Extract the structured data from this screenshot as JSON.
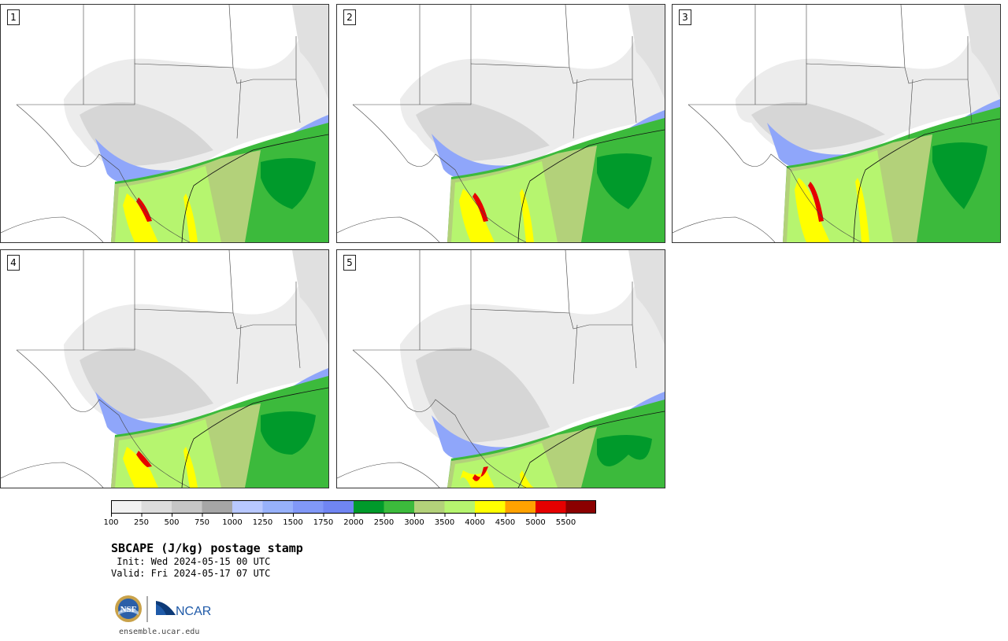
{
  "panels": [
    {
      "label": "1"
    },
    {
      "label": "2"
    },
    {
      "label": "3"
    },
    {
      "label": "4"
    },
    {
      "label": "5"
    }
  ],
  "colorbar": {
    "ticks": [
      "100",
      "250",
      "500",
      "750",
      "1000",
      "1250",
      "1500",
      "1750",
      "2000",
      "2500",
      "3000",
      "3500",
      "4000",
      "4500",
      "5000",
      "5500"
    ],
    "colors": [
      "#f2f2f2",
      "#dcdcdc",
      "#c6c6c6",
      "#a6a6a6",
      "#b8c8ff",
      "#97b1fb",
      "#8198f7",
      "#7085f2",
      "#009a2b",
      "#3cba3c",
      "#b3d17a",
      "#b6f56f",
      "#ffff00",
      "#ffa200",
      "#e50000",
      "#8b0000"
    ]
  },
  "title": "SBCAPE (J/kg) postage stamp",
  "init": " Init: Wed 2024-05-15 00 UTC",
  "valid": "Valid: Fri 2024-05-17 07 UTC",
  "logos": {
    "left": "NSF",
    "right": "NCAR"
  },
  "url": "ensemble.ucar.edu"
}
